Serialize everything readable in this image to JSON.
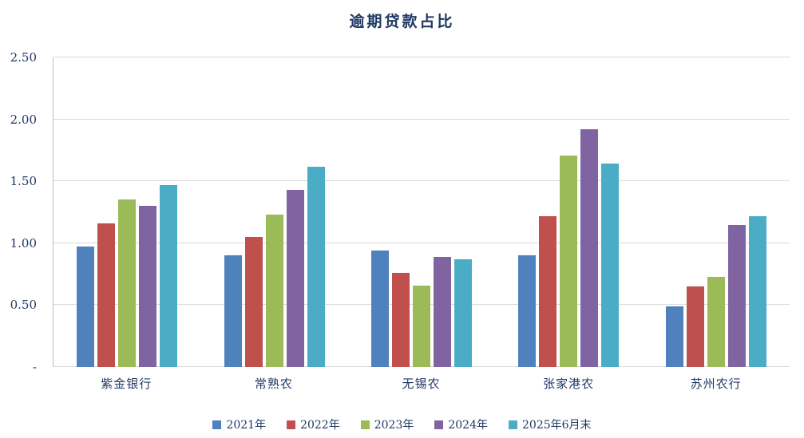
{
  "chart_data": {
    "type": "bar",
    "title": "逾期贷款占比",
    "categories": [
      "紫金银行",
      "常熟农",
      "无锡农",
      "张家港农",
      "苏州农行"
    ],
    "series": [
      {
        "name": "2021年",
        "color": "#4F81BD",
        "values": [
          0.97,
          0.9,
          0.94,
          0.9,
          0.49
        ]
      },
      {
        "name": "2022年",
        "color": "#C0504D",
        "values": [
          1.16,
          1.05,
          0.76,
          1.22,
          0.65
        ]
      },
      {
        "name": "2023年",
        "color": "#9BBB59",
        "values": [
          1.35,
          1.23,
          0.66,
          1.71,
          0.73
        ]
      },
      {
        "name": "2024年",
        "color": "#8064A2",
        "values": [
          1.3,
          1.43,
          0.89,
          1.92,
          1.15
        ]
      },
      {
        "name": "2025年6月末",
        "color": "#4BACC6",
        "values": [
          1.47,
          1.62,
          0.87,
          1.64,
          1.22
        ]
      }
    ],
    "ylim": [
      0,
      2.5
    ],
    "ytick_step": 0.5,
    "ytick_labels": [
      "-",
      "0.50",
      "1.00",
      "1.50",
      "2.00",
      "2.50"
    ],
    "grid": true,
    "legend_position": "bottom",
    "colors": {
      "text": "#1F3864",
      "gridline": "#D9D9D9",
      "background": "#FFFFFF"
    }
  }
}
